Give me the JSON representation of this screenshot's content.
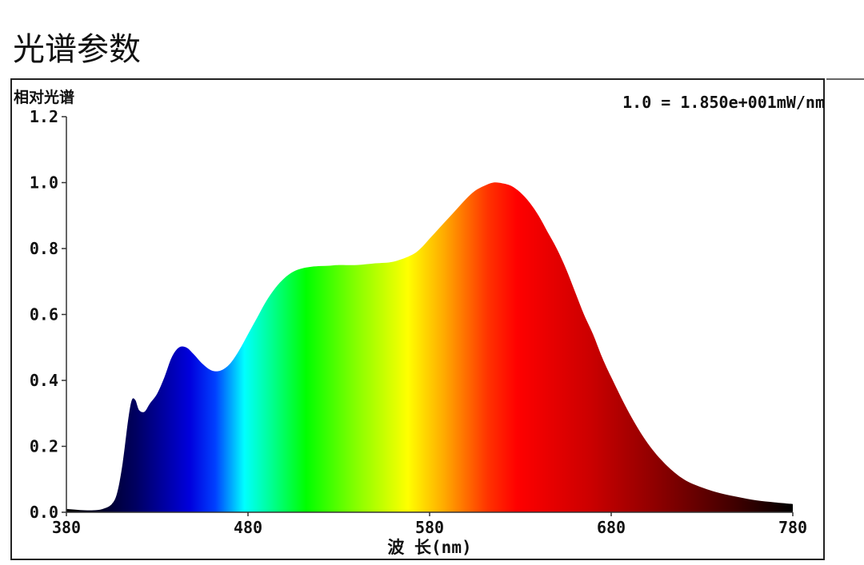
{
  "page": {
    "title": "光谱参数"
  },
  "chart_data": {
    "type": "area",
    "ylabel": "相对光谱",
    "xlabel": "波 长(nm)",
    "scale_note": "1.0 = 1.850e+001mW/nm",
    "xlim": [
      380,
      780
    ],
    "ylim": [
      0,
      1.2
    ],
    "x_ticks": [
      "380",
      "480",
      "580",
      "680",
      "780"
    ],
    "y_ticks": [
      "0.0",
      "0.2",
      "0.4",
      "0.6",
      "0.8",
      "1.0",
      "1.2"
    ],
    "grid": false,
    "fill": "visible-spectrum-gradient",
    "x": [
      380,
      385,
      390,
      395,
      400,
      405,
      408,
      411,
      414,
      416,
      418,
      420,
      423,
      426,
      430,
      434,
      438,
      442,
      446,
      450,
      455,
      460,
      465,
      470,
      475,
      480,
      485,
      490,
      495,
      500,
      505,
      510,
      515,
      520,
      525,
      530,
      540,
      550,
      560,
      570,
      575,
      580,
      585,
      590,
      595,
      600,
      605,
      610,
      615,
      620,
      625,
      630,
      635,
      640,
      645,
      650,
      655,
      660,
      665,
      670,
      675,
      680,
      690,
      700,
      710,
      720,
      730,
      740,
      750,
      760,
      770,
      780
    ],
    "y": [
      0.01,
      0.008,
      0.006,
      0.006,
      0.01,
      0.025,
      0.06,
      0.15,
      0.28,
      0.34,
      0.34,
      0.31,
      0.305,
      0.33,
      0.36,
      0.41,
      0.47,
      0.5,
      0.5,
      0.48,
      0.45,
      0.43,
      0.43,
      0.45,
      0.49,
      0.54,
      0.59,
      0.64,
      0.68,
      0.71,
      0.73,
      0.74,
      0.745,
      0.747,
      0.748,
      0.75,
      0.75,
      0.755,
      0.76,
      0.78,
      0.8,
      0.83,
      0.86,
      0.89,
      0.92,
      0.95,
      0.975,
      0.99,
      1.0,
      0.998,
      0.99,
      0.97,
      0.94,
      0.9,
      0.85,
      0.8,
      0.74,
      0.67,
      0.6,
      0.54,
      0.47,
      0.41,
      0.3,
      0.21,
      0.145,
      0.1,
      0.075,
      0.058,
      0.046,
      0.036,
      0.03,
      0.025
    ]
  }
}
